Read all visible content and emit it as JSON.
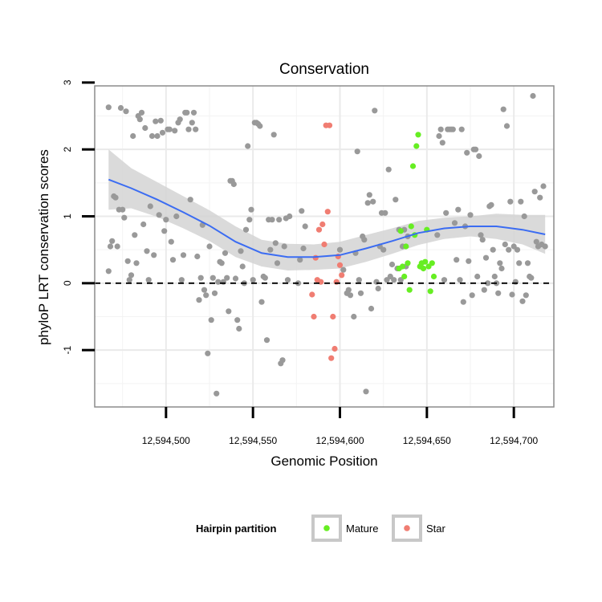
{
  "chart_data": {
    "type": "scatter",
    "title": "Conservation",
    "xlabel": "Genomic Position",
    "ylabel": "phyloP LRT conservation scores",
    "xlim": [
      12594459,
      12594723
    ],
    "ylim": [
      -1.85,
      2.95
    ],
    "x_ticks": [
      12594500,
      12594550,
      12594600,
      12594650,
      12594700
    ],
    "x_tick_labels": [
      "12,594,500",
      "12,594,550",
      "12,594,600",
      "12,594,650",
      "12,594,700"
    ],
    "y_ticks": [
      -1,
      0,
      1,
      2,
      3
    ],
    "y_tick_labels": [
      "-1",
      "0",
      "1",
      "2",
      "3"
    ],
    "reference_line": {
      "y": 0,
      "style": "dashed"
    },
    "grid": true,
    "legend": {
      "title": "Hairpin partition",
      "position": "bottom",
      "entries": [
        {
          "name": "Mature",
          "color": "#66ee22"
        },
        {
          "name": "Star",
          "color": "#f07d72"
        }
      ]
    },
    "colors": {
      "other": "#999999",
      "mature": "#66ee22",
      "star": "#f07d72",
      "smooth": "#3b6cf2",
      "ribbon": "#d3d3d3"
    },
    "series": [
      {
        "group": "other",
        "points": [
          [
            12594467,
            2.63
          ],
          [
            12594467,
            0.18
          ],
          [
            12594468,
            0.55
          ],
          [
            12594469,
            0.63
          ],
          [
            12594470,
            1.3
          ],
          [
            12594471,
            1.28
          ],
          [
            12594472,
            0.55
          ],
          [
            12594473,
            1.1
          ],
          [
            12594474,
            2.62
          ],
          [
            12594475,
            1.1
          ],
          [
            12594476,
            0.98
          ],
          [
            12594477,
            2.57
          ],
          [
            12594478,
            0.33
          ],
          [
            12594479,
            0.05
          ],
          [
            12594480,
            0.12
          ],
          [
            12594481,
            2.2
          ],
          [
            12594482,
            0.72
          ],
          [
            12594483,
            0.3
          ],
          [
            12594484,
            2.5
          ],
          [
            12594485,
            2.45
          ],
          [
            12594486,
            2.55
          ],
          [
            12594487,
            0.88
          ],
          [
            12594488,
            2.32
          ],
          [
            12594489,
            0.48
          ],
          [
            12594490,
            0.05
          ],
          [
            12594491,
            1.15
          ],
          [
            12594492,
            2.2
          ],
          [
            12594493,
            0.42
          ],
          [
            12594494,
            2.42
          ],
          [
            12594495,
            2.2
          ],
          [
            12594496,
            1.02
          ],
          [
            12594497,
            2.43
          ],
          [
            12594498,
            2.25
          ],
          [
            12594499,
            0.78
          ],
          [
            12594500,
            0.95
          ],
          [
            12594501,
            2.3
          ],
          [
            12594502,
            2.3
          ],
          [
            12594503,
            0.62
          ],
          [
            12594504,
            0.35
          ],
          [
            12594505,
            2.28
          ],
          [
            12594506,
            1.0
          ],
          [
            12594507,
            2.4
          ],
          [
            12594508,
            2.45
          ],
          [
            12594509,
            0.05
          ],
          [
            12594510,
            0.42
          ],
          [
            12594511,
            2.55
          ],
          [
            12594512,
            2.55
          ],
          [
            12594513,
            2.3
          ],
          [
            12594514,
            1.25
          ],
          [
            12594515,
            2.4
          ],
          [
            12594516,
            2.55
          ],
          [
            12594517,
            2.3
          ],
          [
            12594518,
            0.4
          ],
          [
            12594519,
            -0.25
          ],
          [
            12594520,
            0.08
          ],
          [
            12594521,
            0.87
          ],
          [
            12594522,
            -0.1
          ],
          [
            12594523,
            -0.18
          ],
          [
            12594524,
            -1.05
          ],
          [
            12594525,
            0.55
          ],
          [
            12594526,
            -0.55
          ],
          [
            12594527,
            0.08
          ],
          [
            12594528,
            -0.15
          ],
          [
            12594529,
            -1.65
          ],
          [
            12594530,
            0.02
          ],
          [
            12594531,
            0.32
          ],
          [
            12594532,
            0.3
          ],
          [
            12594533,
            0.02
          ],
          [
            12594534,
            0.45
          ],
          [
            12594535,
            0.08
          ],
          [
            12594536,
            -0.42
          ],
          [
            12594537,
            1.53
          ],
          [
            12594538,
            1.53
          ],
          [
            12594539,
            1.48
          ],
          [
            12594540,
            0.07
          ],
          [
            12594541,
            -0.55
          ],
          [
            12594542,
            -0.68
          ],
          [
            12594543,
            0.48
          ],
          [
            12594544,
            0.25
          ],
          [
            12594545,
            0.0
          ],
          [
            12594546,
            0.8
          ],
          [
            12594547,
            2.05
          ],
          [
            12594548,
            0.95
          ],
          [
            12594549,
            1.1
          ],
          [
            12594550,
            0.05
          ],
          [
            12594551,
            2.4
          ],
          [
            12594552,
            2.4
          ],
          [
            12594553,
            2.38
          ],
          [
            12594554,
            2.35
          ],
          [
            12594555,
            -0.28
          ],
          [
            12594556,
            0.1
          ],
          [
            12594557,
            0.08
          ],
          [
            12594558,
            -0.85
          ],
          [
            12594559,
            0.95
          ],
          [
            12594560,
            0.5
          ],
          [
            12594561,
            0.95
          ],
          [
            12594562,
            2.22
          ],
          [
            12594563,
            0.6
          ],
          [
            12594564,
            0.3
          ],
          [
            12594565,
            0.95
          ],
          [
            12594566,
            -1.2
          ],
          [
            12594567,
            -1.15
          ],
          [
            12594568,
            0.55
          ],
          [
            12594569,
            0.97
          ],
          [
            12594570,
            0.05
          ],
          [
            12594571,
            1.0
          ],
          [
            12594576,
            0.0
          ],
          [
            12594577,
            0.35
          ],
          [
            12594578,
            1.08
          ],
          [
            12594579,
            0.52
          ],
          [
            12594580,
            0.85
          ],
          [
            12594600,
            0.5
          ],
          [
            12594602,
            0.2
          ],
          [
            12594604,
            -0.15
          ],
          [
            12594605,
            -0.1
          ],
          [
            12594606,
            -0.18
          ],
          [
            12594608,
            -0.5
          ],
          [
            12594609,
            0.45
          ],
          [
            12594610,
            1.97
          ],
          [
            12594611,
            0.05
          ],
          [
            12594612,
            -0.15
          ],
          [
            12594613,
            0.7
          ],
          [
            12594614,
            0.65
          ],
          [
            12594615,
            -1.62
          ],
          [
            12594616,
            1.2
          ],
          [
            12594617,
            1.32
          ],
          [
            12594618,
            -0.38
          ],
          [
            12594619,
            1.22
          ],
          [
            12594620,
            2.58
          ],
          [
            12594621,
            0.02
          ],
          [
            12594622,
            -0.08
          ],
          [
            12594623,
            0.55
          ],
          [
            12594624,
            1.05
          ],
          [
            12594625,
            0.5
          ],
          [
            12594626,
            1.05
          ],
          [
            12594627,
            0.05
          ],
          [
            12594628,
            1.7
          ],
          [
            12594629,
            0.1
          ],
          [
            12594630,
            0.28
          ],
          [
            12594631,
            0.05
          ],
          [
            12594632,
            1.25
          ],
          [
            12594633,
            0.22
          ],
          [
            12594634,
            0.8
          ],
          [
            12594635,
            0.05
          ],
          [
            12594636,
            0.55
          ],
          [
            12594637,
            0.8
          ],
          [
            12594638,
            0.25
          ],
          [
            12594639,
            0.7
          ],
          [
            12594656,
            0.72
          ],
          [
            12594657,
            2.2
          ],
          [
            12594658,
            2.3
          ],
          [
            12594659,
            2.1
          ],
          [
            12594660,
            0.05
          ],
          [
            12594661,
            1.05
          ],
          [
            12594662,
            2.3
          ],
          [
            12594663,
            2.3
          ],
          [
            12594664,
            2.3
          ],
          [
            12594665,
            2.3
          ],
          [
            12594666,
            0.9
          ],
          [
            12594667,
            0.35
          ],
          [
            12594668,
            1.1
          ],
          [
            12594669,
            0.05
          ],
          [
            12594670,
            2.3
          ],
          [
            12594671,
            -0.28
          ],
          [
            12594672,
            0.85
          ],
          [
            12594673,
            1.95
          ],
          [
            12594674,
            0.33
          ],
          [
            12594675,
            1.02
          ],
          [
            12594676,
            -0.18
          ],
          [
            12594677,
            2.0
          ],
          [
            12594678,
            2.0
          ],
          [
            12594679,
            0.1
          ],
          [
            12594680,
            1.9
          ],
          [
            12594681,
            0.72
          ],
          [
            12594682,
            0.65
          ],
          [
            12594683,
            -0.1
          ],
          [
            12594684,
            0.38
          ],
          [
            12594685,
            0.0
          ],
          [
            12594686,
            1.15
          ],
          [
            12594687,
            1.17
          ],
          [
            12594688,
            0.5
          ],
          [
            12594689,
            0.1
          ],
          [
            12594690,
            0.0
          ],
          [
            12594691,
            -0.15
          ],
          [
            12594692,
            0.3
          ],
          [
            12594693,
            0.22
          ],
          [
            12594694,
            2.6
          ],
          [
            12594695,
            0.58
          ],
          [
            12594696,
            2.35
          ],
          [
            12594697,
            0.5
          ],
          [
            12594698,
            1.22
          ],
          [
            12594699,
            -0.17
          ],
          [
            12594700,
            0.55
          ],
          [
            12594701,
            0.02
          ],
          [
            12594702,
            0.5
          ],
          [
            12594703,
            0.3
          ],
          [
            12594704,
            1.22
          ],
          [
            12594705,
            -0.27
          ],
          [
            12594706,
            1.0
          ],
          [
            12594707,
            -0.18
          ],
          [
            12594708,
            0.3
          ],
          [
            12594709,
            0.1
          ],
          [
            12594710,
            0.08
          ],
          [
            12594711,
            2.8
          ],
          [
            12594712,
            1.37
          ],
          [
            12594713,
            0.62
          ],
          [
            12594714,
            0.55
          ],
          [
            12594715,
            1.28
          ],
          [
            12594716,
            0.58
          ],
          [
            12594717,
            1.45
          ],
          [
            12594718,
            0.55
          ]
        ]
      },
      {
        "group": "mature",
        "name": "Mature",
        "points": [
          [
            12594634,
            0.22
          ],
          [
            12594635,
            0.78
          ],
          [
            12594636,
            0.25
          ],
          [
            12594637,
            0.1
          ],
          [
            12594638,
            0.55
          ],
          [
            12594639,
            0.3
          ],
          [
            12594640,
            -0.1
          ],
          [
            12594641,
            0.85
          ],
          [
            12594642,
            1.75
          ],
          [
            12594643,
            0.72
          ],
          [
            12594644,
            2.05
          ],
          [
            12594645,
            2.22
          ],
          [
            12594646,
            0.25
          ],
          [
            12594647,
            0.3
          ],
          [
            12594648,
            0.22
          ],
          [
            12594649,
            0.32
          ],
          [
            12594650,
            0.8
          ],
          [
            12594651,
            0.25
          ],
          [
            12594652,
            -0.12
          ],
          [
            12594653,
            0.3
          ],
          [
            12594654,
            0.1
          ]
        ]
      },
      {
        "group": "star",
        "name": "Star",
        "points": [
          [
            12594584,
            -0.17
          ],
          [
            12594585,
            -0.5
          ],
          [
            12594586,
            0.38
          ],
          [
            12594587,
            0.05
          ],
          [
            12594588,
            0.8
          ],
          [
            12594589,
            0.02
          ],
          [
            12594590,
            0.88
          ],
          [
            12594591,
            0.58
          ],
          [
            12594592,
            2.36
          ],
          [
            12594593,
            1.07
          ],
          [
            12594594,
            2.36
          ],
          [
            12594595,
            -1.12
          ],
          [
            12594596,
            -0.5
          ],
          [
            12594597,
            -0.98
          ],
          [
            12594598,
            0.02
          ],
          [
            12594599,
            0.4
          ],
          [
            12594600,
            0.27
          ],
          [
            12594601,
            0.12
          ]
        ]
      }
    ],
    "smooth": {
      "x": [
        12594467,
        12594480,
        12594495,
        12594510,
        12594525,
        12594540,
        12594555,
        12594570,
        12594585,
        12594600,
        12594615,
        12594630,
        12594645,
        12594660,
        12594675,
        12594690,
        12594705,
        12594718
      ],
      "y": [
        1.55,
        1.42,
        1.25,
        1.06,
        0.86,
        0.62,
        0.45,
        0.39,
        0.39,
        0.42,
        0.52,
        0.63,
        0.75,
        0.82,
        0.85,
        0.85,
        0.8,
        0.73
      ],
      "lower": [
        1.1,
        1.12,
        0.99,
        0.82,
        0.63,
        0.39,
        0.25,
        0.19,
        0.2,
        0.22,
        0.32,
        0.44,
        0.57,
        0.66,
        0.7,
        0.66,
        0.58,
        0.44
      ],
      "upper": [
        2.0,
        1.72,
        1.51,
        1.3,
        1.09,
        0.85,
        0.65,
        0.59,
        0.58,
        0.62,
        0.72,
        0.82,
        0.93,
        0.98,
        1.0,
        1.04,
        1.02,
        1.02
      ]
    }
  }
}
